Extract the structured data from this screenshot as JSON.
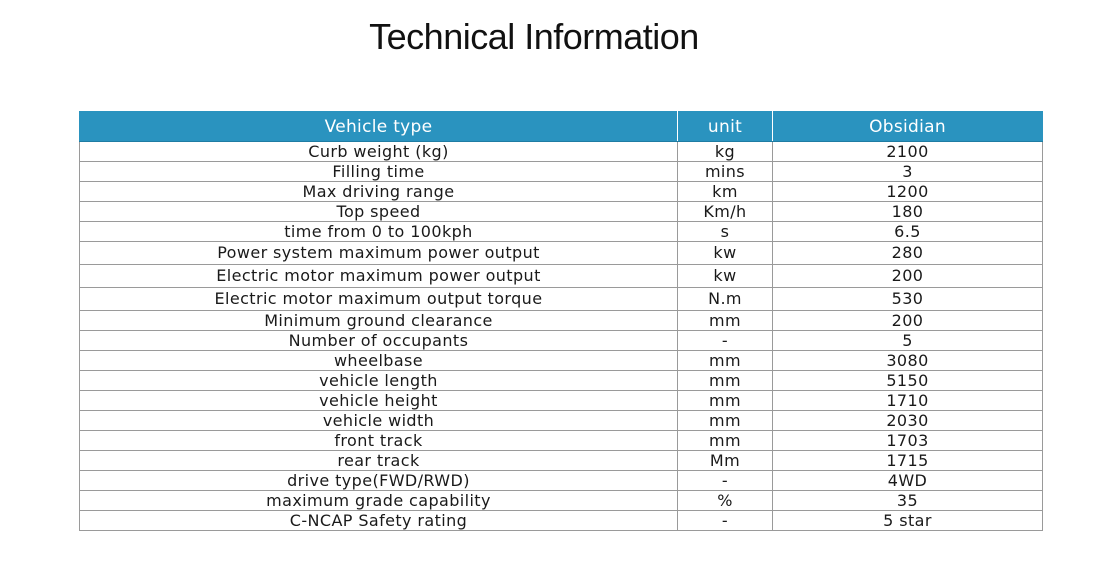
{
  "title": "Technical Information",
  "table": {
    "headers": [
      "Vehicle type",
      "unit",
      "Obsidian"
    ],
    "rows": [
      [
        "Curb weight (kg)",
        "kg",
        "2100"
      ],
      [
        "Filling time",
        "mins",
        "3"
      ],
      [
        "Max driving range",
        "km",
        "1200"
      ],
      [
        "Top speed",
        "Km/h",
        "180"
      ],
      [
        "time from 0 to 100kph",
        "s",
        "6.5"
      ],
      [
        "Power system maximum power output",
        "kw",
        "280"
      ],
      [
        "Electric motor maximum power output",
        "kw",
        "200"
      ],
      [
        "Electric motor maximum output torque",
        "N.m",
        "530"
      ],
      [
        "Minimum ground clearance",
        "mm",
        "200"
      ],
      [
        "Number of occupants",
        "-",
        "5"
      ],
      [
        "wheelbase",
        "mm",
        "3080"
      ],
      [
        "vehicle length",
        "mm",
        "5150"
      ],
      [
        "vehicle height",
        "mm",
        "1710"
      ],
      [
        "vehicle width",
        "mm",
        "2030"
      ],
      [
        "front track",
        "mm",
        "1703"
      ],
      [
        "rear track",
        "Mm",
        "1715"
      ],
      [
        "drive type(FWD/RWD)",
        "-",
        "4WD"
      ],
      [
        "maximum grade capability",
        "%",
        "35"
      ],
      [
        "C-NCAP Safety rating",
        "-",
        "5 star"
      ]
    ]
  },
  "colors": {
    "header_bg": "#2a93bf",
    "header_text": "#ffffff",
    "grid": "#9a9a9a"
  }
}
